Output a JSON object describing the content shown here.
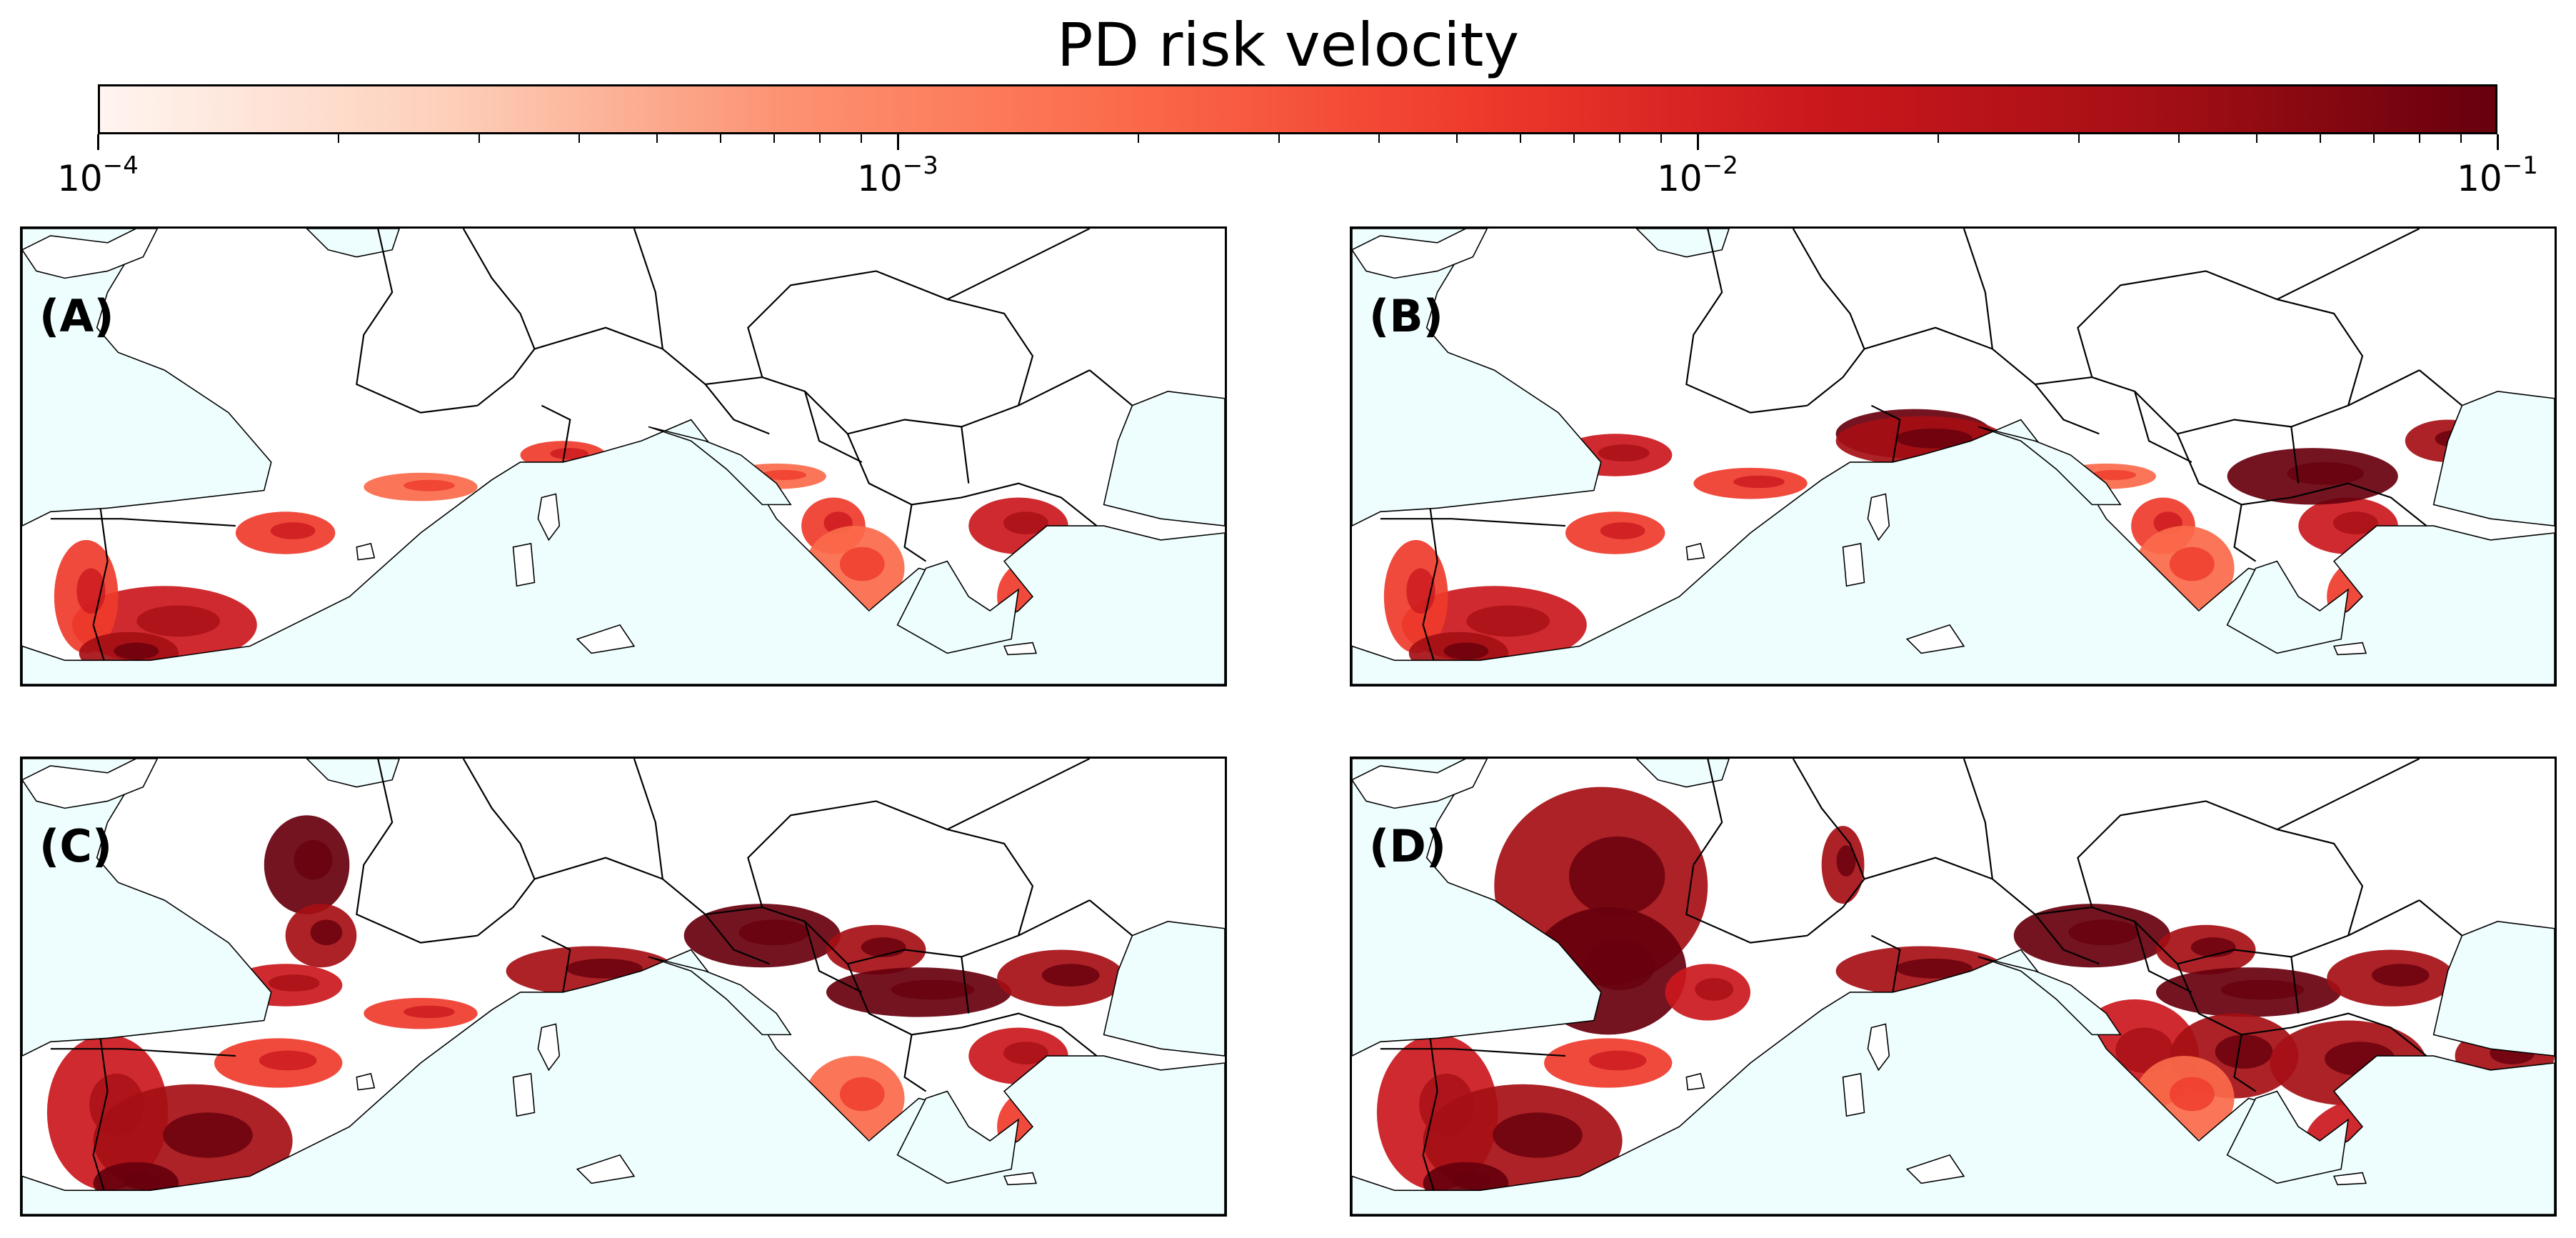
{
  "title": "PD risk velocity",
  "colorbar": {
    "scale": "log",
    "range": [
      0.0001,
      0.1
    ],
    "colormap": "Reds",
    "colors": [
      "#fff5f0",
      "#fdd0bb",
      "#fc9272",
      "#fb6a4a",
      "#ef3b2c",
      "#cb181d",
      "#a50f15",
      "#67000d"
    ],
    "ticks": [
      {
        "base": "10",
        "exp": "−4"
      },
      {
        "base": "10",
        "exp": "−3"
      },
      {
        "base": "10",
        "exp": "−2"
      },
      {
        "base": "10",
        "exp": "−1"
      }
    ]
  },
  "map": {
    "sea_color": "#eefdfd",
    "land_color": "#ffffff",
    "border_color": "#000000"
  },
  "panels": [
    {
      "label": "(A)",
      "risk_zones": [
        "iberia-south",
        "iberia-east",
        "southern-france-coast",
        "italy-west",
        "balkan-coast",
        "greece",
        "turkey-west"
      ]
    },
    {
      "label": "(B)",
      "risk_zones": [
        "iberia-south",
        "iberia-east",
        "southern-france",
        "po-valley",
        "italy",
        "balkan-coast",
        "greece",
        "turkey-west",
        "black-sea-coast"
      ]
    },
    {
      "label": "(C)",
      "risk_zones": [
        "iberia",
        "western-france",
        "southern-france",
        "italy",
        "pannonian-basin",
        "danube-plain",
        "greece",
        "turkey-west"
      ]
    },
    {
      "label": "(D)",
      "risk_zones": [
        "iberia",
        "france",
        "rhine-valley",
        "italy",
        "pannonian-basin",
        "danube-plain",
        "balkans",
        "greece",
        "turkey"
      ]
    }
  ]
}
